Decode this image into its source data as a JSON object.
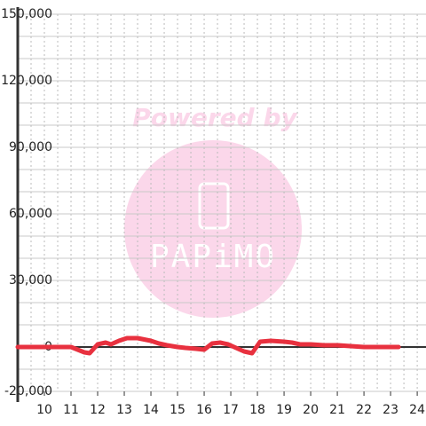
{
  "chart_data": {
    "type": "line",
    "x": [
      9,
      10,
      11,
      11.5,
      11.7,
      12,
      12.3,
      12.5,
      12.8,
      13.1,
      13.5,
      14,
      14.3,
      14.6,
      15,
      15.3,
      15.7,
      16,
      16.3,
      16.6,
      16.9,
      17.2,
      17.5,
      17.8,
      18.1,
      18.5,
      19,
      19.3,
      19.6,
      20,
      20.5,
      21,
      21.5,
      22,
      23.3
    ],
    "series": [
      {
        "color": "#e8313f",
        "values": [
          0,
          0,
          0,
          -2400,
          -2800,
          1200,
          2000,
          1200,
          2800,
          4000,
          4000,
          2800,
          1600,
          800,
          0,
          -400,
          -800,
          -1200,
          1600,
          2000,
          1200,
          -400,
          -2000,
          -2800,
          2400,
          2800,
          2400,
          2000,
          1200,
          1200,
          800,
          800,
          400,
          0,
          0
        ]
      }
    ],
    "xlim": [
      9,
      24.33
    ],
    "xticks": [
      10,
      11,
      12,
      13,
      14,
      15,
      16,
      17,
      18,
      19,
      20,
      21,
      22,
      23,
      24
    ],
    "xgrid": [
      9.5,
      10,
      10.5,
      11,
      11.5,
      12,
      12.5,
      13,
      13.5,
      14,
      14.5,
      15,
      15.5,
      16,
      16.5,
      17,
      17.5,
      18,
      18.5,
      19,
      19.5,
      20,
      20.5,
      21,
      21.5,
      22,
      22.5,
      23,
      23.5,
      24
    ],
    "ylim": [
      -20000,
      150000
    ],
    "yticks": [
      {
        "value": -20000,
        "label": "-20,000"
      },
      0,
      {
        "value": 30000,
        "label": "30,000"
      },
      {
        "value": 60000,
        "label": "60,000"
      },
      {
        "value": 90000,
        "label": "90,000"
      },
      {
        "value": 120000,
        "label": "120,000"
      },
      {
        "value": 150000,
        "label": "150,000"
      }
    ],
    "ygrid": [
      -10000,
      10000,
      20000,
      40000,
      50000,
      70000,
      80000,
      100000,
      110000,
      130000,
      140000
    ],
    "watermark": {
      "line1": "Powered by",
      "line2": "PAPiMO"
    }
  }
}
